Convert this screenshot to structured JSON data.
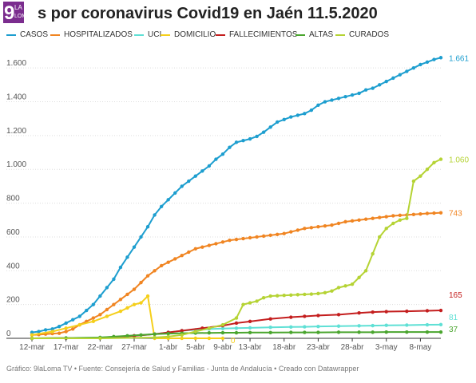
{
  "header": {
    "logo_text_big": "9",
    "logo_text_small_1": "LA",
    "logo_text_small_2": "LOMA",
    "title": "s por coronavirus Covid19 en Jaén 11.5.2020"
  },
  "footer": {
    "text": "Gráfico: 9laLoma TV • Fuente: Consejería de Salud y Familias - Junta de Andalucía • Creado con Datawrapper"
  },
  "colors": {
    "logo_bg": "#7b2d8e",
    "grid": "#dddddd",
    "axis": "#333333"
  },
  "chart_data": {
    "type": "line",
    "x_tick_labels": [
      "12-mar",
      "17-mar",
      "22-mar",
      "27-mar",
      "1-abr",
      "5-abr",
      "9-abr",
      "13-abr",
      "18-abr",
      "23-abr",
      "28-abr",
      "3-may",
      "8-may"
    ],
    "x_tick_days": [
      0,
      5,
      10,
      15,
      20,
      24,
      28,
      32,
      37,
      42,
      47,
      52,
      57
    ],
    "y_ticks": [
      0,
      200,
      400,
      600,
      800,
      1000,
      1200,
      1400,
      1600
    ],
    "y_tick_labels": [
      "0",
      "200",
      "400",
      "600",
      "800",
      "1.000",
      "1.200",
      "1.400",
      "1.600"
    ],
    "ylim": [
      0,
      1700
    ],
    "xlim_days": [
      0,
      60
    ],
    "grid": true,
    "legend_position": "top",
    "series": [
      {
        "name": "CASOS",
        "color": "#1d9ecf",
        "end_label": "1.661",
        "x": [
          0,
          1,
          2,
          3,
          4,
          5,
          6,
          7,
          8,
          9,
          10,
          11,
          12,
          13,
          14,
          15,
          16,
          17,
          18,
          19,
          20,
          21,
          22,
          23,
          24,
          25,
          26,
          27,
          28,
          29,
          30,
          31,
          32,
          33,
          34,
          35,
          36,
          37,
          38,
          39,
          40,
          41,
          42,
          43,
          44,
          45,
          46,
          47,
          48,
          49,
          50,
          51,
          52,
          53,
          54,
          55,
          56,
          57,
          58,
          59,
          60
        ],
        "y": [
          35,
          40,
          50,
          55,
          70,
          90,
          110,
          130,
          165,
          200,
          250,
          300,
          350,
          420,
          480,
          540,
          600,
          660,
          730,
          780,
          820,
          860,
          900,
          930,
          960,
          990,
          1020,
          1060,
          1090,
          1130,
          1160,
          1170,
          1180,
          1195,
          1220,
          1250,
          1280,
          1295,
          1310,
          1320,
          1330,
          1350,
          1380,
          1400,
          1410,
          1420,
          1430,
          1440,
          1450,
          1470,
          1480,
          1500,
          1520,
          1540,
          1560,
          1580,
          1600,
          1620,
          1635,
          1650,
          1661
        ]
      },
      {
        "name": "HOSPITALIZADOS",
        "color": "#f08522",
        "end_label": "743",
        "x": [
          0,
          1,
          2,
          3,
          4,
          5,
          6,
          7,
          8,
          9,
          10,
          11,
          12,
          13,
          14,
          15,
          16,
          17,
          18,
          19,
          20,
          21,
          22,
          23,
          24,
          25,
          26,
          27,
          28,
          29,
          30,
          31,
          32,
          33,
          34,
          35,
          36,
          37,
          38,
          39,
          40,
          41,
          42,
          43,
          44,
          45,
          46,
          47,
          48,
          49,
          50,
          51,
          52,
          53,
          54,
          55,
          56,
          57,
          58,
          59,
          60
        ],
        "y": [
          20,
          22,
          25,
          28,
          30,
          40,
          55,
          80,
          100,
          120,
          140,
          170,
          200,
          230,
          260,
          290,
          330,
          370,
          400,
          430,
          450,
          470,
          490,
          510,
          530,
          540,
          550,
          560,
          570,
          580,
          585,
          590,
          595,
          600,
          605,
          610,
          615,
          620,
          630,
          640,
          650,
          655,
          660,
          665,
          670,
          680,
          690,
          695,
          700,
          705,
          710,
          715,
          720,
          725,
          728,
          730,
          733,
          736,
          739,
          741,
          743
        ]
      },
      {
        "name": "UCI",
        "color": "#5fe0d5",
        "end_label": "81",
        "x": [
          0,
          5,
          10,
          15,
          18,
          20,
          22,
          24,
          26,
          28,
          30,
          32,
          35,
          38,
          40,
          42,
          45,
          48,
          50,
          52,
          55,
          58,
          60
        ],
        "y": [
          0,
          2,
          5,
          15,
          25,
          35,
          45,
          50,
          55,
          58,
          60,
          62,
          65,
          67,
          68,
          70,
          72,
          74,
          75,
          77,
          78,
          80,
          81
        ]
      },
      {
        "name": "DOMICILIO",
        "color": "#f5cf1b",
        "end_label": "0",
        "x": [
          0,
          3,
          5,
          7,
          9,
          11,
          13,
          14,
          15,
          16,
          17,
          18,
          20,
          22,
          24,
          26,
          28
        ],
        "y": [
          20,
          40,
          60,
          80,
          100,
          130,
          160,
          180,
          200,
          210,
          250,
          0,
          0,
          0,
          0,
          0,
          0
        ]
      },
      {
        "name": "FALLECIMIENTOS",
        "color": "#c41e1e",
        "end_label": "165",
        "x": [
          0,
          5,
          10,
          12,
          15,
          18,
          20,
          22,
          25,
          28,
          30,
          32,
          35,
          38,
          40,
          42,
          45,
          48,
          50,
          52,
          55,
          58,
          60
        ],
        "y": [
          0,
          1,
          3,
          8,
          15,
          25,
          35,
          45,
          60,
          75,
          90,
          100,
          115,
          125,
          130,
          135,
          140,
          150,
          155,
          158,
          160,
          163,
          165
        ]
      },
      {
        "name": "ALTAS",
        "color": "#4aa52e",
        "end_label": "37",
        "x": [
          0,
          5,
          10,
          12,
          14,
          16,
          18,
          20,
          22,
          24,
          26,
          28,
          30,
          32,
          35,
          38,
          40,
          42,
          45,
          48,
          50,
          52,
          55,
          58,
          60
        ],
        "y": [
          0,
          2,
          5,
          10,
          15,
          20,
          25,
          28,
          30,
          31,
          32,
          33,
          33,
          34,
          34,
          35,
          35,
          35,
          36,
          36,
          36,
          37,
          37,
          37,
          37
        ]
      },
      {
        "name": "CURADOS",
        "color": "#b5d334",
        "end_label": "1.060",
        "x": [
          0,
          10,
          18,
          20,
          22,
          24,
          26,
          28,
          30,
          31,
          32,
          33,
          34,
          35,
          36,
          37,
          38,
          39,
          40,
          41,
          42,
          43,
          44,
          45,
          46,
          47,
          48,
          49,
          50,
          51,
          52,
          53,
          54,
          55,
          56,
          57,
          58,
          59,
          60
        ],
        "y": [
          0,
          0,
          5,
          10,
          20,
          40,
          60,
          80,
          120,
          200,
          210,
          220,
          240,
          250,
          252,
          254,
          256,
          258,
          260,
          262,
          265,
          270,
          280,
          300,
          310,
          320,
          360,
          400,
          500,
          600,
          650,
          680,
          700,
          710,
          930,
          960,
          1000,
          1040,
          1060
        ]
      }
    ]
  }
}
